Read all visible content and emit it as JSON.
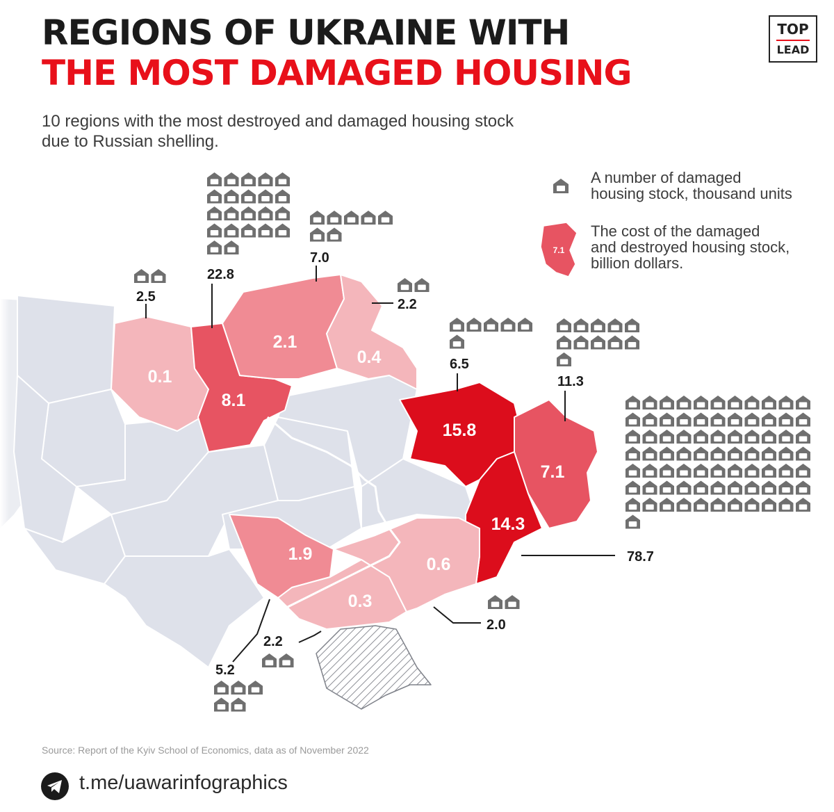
{
  "title": {
    "line1": "REGIONS OF UKRAINE WITH",
    "line2": "THE MOST DAMAGED HOUSING"
  },
  "subtitle": {
    "line1": "10 regions with the most destroyed and damaged housing stock",
    "line2": "due to Russian shelling."
  },
  "logo": {
    "top": "TOP",
    "bottom": "LEAD"
  },
  "legend": {
    "house": {
      "line1": "A number of damaged",
      "line2": "housing stock, thousand units"
    },
    "cost": {
      "sample_value": "7.1",
      "line1": "The cost of the damaged",
      "line2": "and destroyed housing stock,",
      "line3": "billion dollars."
    }
  },
  "colors": {
    "low": "#f4b6bb",
    "mid": "#f08b94",
    "high": "#e75462",
    "highest": "#dc0d1c",
    "other": "#dee1ea",
    "house": "#6f6f6f",
    "accent": "#e8101a"
  },
  "regions": [
    {
      "id": "zhytomyr",
      "cost": "0.1",
      "housing": "2.5",
      "houses": 2.5,
      "color": "low"
    },
    {
      "id": "kyiv",
      "cost": "8.1",
      "housing": "22.8",
      "houses": 22.8,
      "color": "high"
    },
    {
      "id": "chernihiv",
      "cost": "2.1",
      "housing": "7.0",
      "houses": 7.0,
      "color": "mid"
    },
    {
      "id": "sumy",
      "cost": "0.4",
      "housing": "2.2",
      "houses": 2.2,
      "color": "low"
    },
    {
      "id": "kharkiv",
      "cost": "15.8",
      "housing": "6.5",
      "houses": 6.5,
      "color": "highest"
    },
    {
      "id": "luhansk",
      "cost": "7.1",
      "housing": "11.3",
      "houses": 11.3,
      "color": "high"
    },
    {
      "id": "donetsk",
      "cost": "14.3",
      "housing": "78.7",
      "houses": 78.7,
      "color": "highest"
    },
    {
      "id": "mykolaiv",
      "cost": "1.9",
      "housing": "5.2",
      "houses": 5.2,
      "color": "mid"
    },
    {
      "id": "kherson",
      "cost": "0.3",
      "housing": "2.2",
      "houses": 2.2,
      "color": "low"
    },
    {
      "id": "zaporizhzhia",
      "cost": "0.6",
      "housing": "2.0",
      "houses": 2.0,
      "color": "low"
    }
  ],
  "footer": {
    "source": "Source: Report of the Kyiv School of Economics, data as of November 2022",
    "link": "t.me/uawarinfographics"
  }
}
